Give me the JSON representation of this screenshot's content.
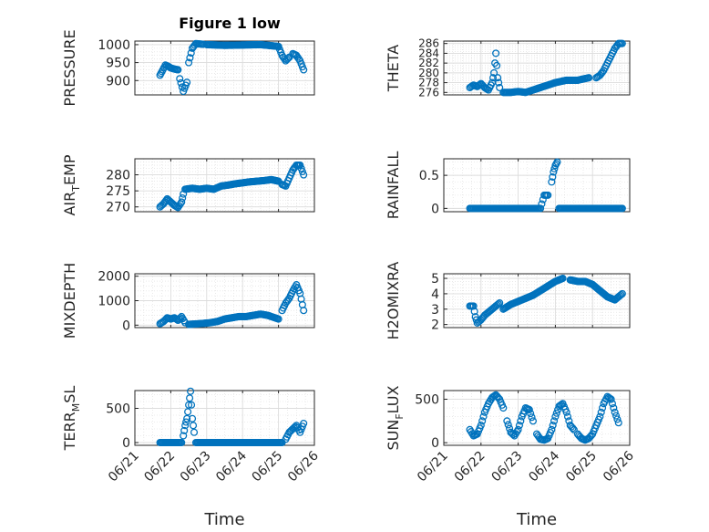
{
  "figure": {
    "title": "Figure 1 low",
    "xlabel": "Time",
    "xticks": [
      "06/21",
      "06/22",
      "06/23",
      "06/24",
      "06/25",
      "06/26"
    ],
    "marker_color": "#0072BD",
    "grid_color": "#dcdcdc"
  },
  "chart_data": [
    {
      "type": "scatter",
      "title": "Figure 1 low",
      "ylabel": "PRESSURE",
      "xlim": [
        0,
        5
      ],
      "ylim": [
        860,
        1010
      ],
      "yticks": [
        900,
        950,
        1000
      ],
      "yticklabels": [
        "900",
        "950",
        "1000"
      ],
      "grid": true,
      "segments": [
        {
          "x": [
            0.7,
            0.78,
            0.85,
            0.92,
            1.0,
            1.1,
            1.2
          ],
          "y": [
            915,
            930,
            943,
            940,
            935,
            932,
            930
          ]
        },
        {
          "x": [
            1.25,
            1.35,
            1.45
          ],
          "y": [
            905,
            870,
            895
          ]
        },
        {
          "x": [
            1.5,
            1.6,
            1.7,
            1.8,
            1.9
          ],
          "y": [
            950,
            990,
            1003,
            1002,
            1001
          ]
        },
        {
          "x": [
            2.0,
            2.5,
            3.0,
            3.5,
            4.0,
            4.1,
            4.2,
            4.3
          ],
          "y": [
            1000,
            998,
            999,
            1000,
            995,
            970,
            955,
            965
          ]
        },
        {
          "x": [
            4.4,
            4.5,
            4.6,
            4.7
          ],
          "y": [
            975,
            970,
            955,
            930
          ]
        }
      ]
    },
    {
      "type": "scatter",
      "ylabel": "THETA",
      "xlim": [
        0,
        5
      ],
      "ylim": [
        275.5,
        286.5
      ],
      "yticks": [
        276,
        278,
        280,
        282,
        284,
        286
      ],
      "yticklabels": [
        "276",
        "278",
        "280",
        "282",
        "284",
        "286"
      ],
      "grid": true,
      "segments": [
        {
          "x": [
            0.7,
            0.8,
            0.9,
            1.0,
            1.1,
            1.2,
            1.3,
            1.35,
            1.4,
            1.45,
            1.5
          ],
          "y": [
            277.0,
            277.5,
            277.2,
            277.8,
            277.0,
            276.5,
            278.0,
            280.0,
            284.0,
            279.0,
            277.0
          ]
        },
        {
          "x": [
            1.6,
            1.8,
            2.0,
            2.2,
            2.4,
            2.6,
            2.8,
            3.0,
            3.3,
            3.6,
            3.9
          ],
          "y": [
            276.0,
            276.0,
            276.2,
            276.0,
            276.5,
            277.0,
            277.5,
            278.0,
            278.5,
            278.5,
            279.0
          ]
        },
        {
          "x": [
            4.1,
            4.2,
            4.3,
            4.4,
            4.5,
            4.6,
            4.7,
            4.8
          ],
          "y": [
            279.0,
            279.5,
            280.5,
            282.0,
            283.5,
            285.0,
            286.0,
            286.0
          ]
        }
      ]
    },
    {
      "type": "scatter",
      "ylabel": "AIR_TEMP",
      "xlim": [
        0,
        5
      ],
      "ylim": [
        268.5,
        285
      ],
      "yticks": [
        270,
        275,
        280
      ],
      "yticklabels": [
        "270",
        "275",
        "280"
      ],
      "grid": true,
      "segments": [
        {
          "x": [
            0.7,
            0.8,
            0.9,
            1.0,
            1.1,
            1.2,
            1.3,
            1.35
          ],
          "y": [
            270.0,
            271.0,
            272.5,
            271.5,
            270.5,
            269.8,
            271.5,
            274.0
          ]
        },
        {
          "x": [
            1.4,
            1.6,
            1.8,
            2.0,
            2.2,
            2.4,
            2.6,
            2.8,
            3.0,
            3.2,
            3.4,
            3.6,
            3.8,
            4.0
          ],
          "y": [
            275.5,
            275.8,
            275.5,
            275.8,
            275.5,
            276.5,
            276.8,
            277.2,
            277.5,
            277.8,
            278.0,
            278.2,
            278.5,
            278.0
          ]
        },
        {
          "x": [
            4.1,
            4.2,
            4.3,
            4.4,
            4.5,
            4.6,
            4.7
          ],
          "y": [
            277.0,
            276.5,
            279.0,
            281.5,
            283.0,
            283.0,
            280.0
          ]
        }
      ]
    },
    {
      "type": "scatter",
      "ylabel": "RAINFALL",
      "xlim": [
        0,
        5
      ],
      "ylim": [
        -0.05,
        0.75
      ],
      "yticks": [
        0,
        0.5
      ],
      "yticklabels": [
        "0",
        "0.5"
      ],
      "grid": true,
      "segments": [
        {
          "x": [
            0.7,
            1.0,
            1.3,
            1.6,
            1.9,
            2.2,
            2.5,
            2.6,
            2.7,
            2.8
          ],
          "y": [
            0,
            0,
            0,
            0,
            0,
            0,
            0,
            0,
            0.2,
            0.2
          ]
        },
        {
          "x": [
            2.9,
            2.95,
            3.0,
            3.05
          ],
          "y": [
            0.4,
            0.55,
            0.65,
            0.7
          ]
        },
        {
          "x": [
            3.1,
            3.3,
            3.6,
            3.9,
            4.2,
            4.5,
            4.8
          ],
          "y": [
            0,
            0,
            0,
            0,
            0,
            0,
            0
          ]
        }
      ]
    },
    {
      "type": "scatter",
      "ylabel": "MIXDEPTH",
      "xlim": [
        0,
        5
      ],
      "ylim": [
        -100,
        2100
      ],
      "yticks": [
        0,
        1000,
        2000
      ],
      "yticklabels": [
        "0",
        "1000",
        "2000"
      ],
      "grid": true,
      "segments": [
        {
          "x": [
            0.7,
            0.8,
            0.9,
            1.0,
            1.1,
            1.2,
            1.3,
            1.4
          ],
          "y": [
            60,
            150,
            300,
            250,
            300,
            200,
            350,
            100
          ]
        },
        {
          "x": [
            1.5,
            1.7,
            1.9,
            2.1,
            2.3,
            2.5,
            2.7,
            2.9,
            3.1,
            3.3,
            3.5,
            3.7,
            3.9,
            4.0
          ],
          "y": [
            30,
            50,
            70,
            100,
            150,
            250,
            300,
            350,
            350,
            400,
            450,
            400,
            300,
            250
          ]
        },
        {
          "x": [
            4.1,
            4.2,
            4.3,
            4.4,
            4.5,
            4.6,
            4.7
          ],
          "y": [
            600,
            900,
            1100,
            1400,
            1650,
            1300,
            600
          ]
        }
      ]
    },
    {
      "type": "scatter",
      "ylabel": "H2OMIXRA",
      "xlim": [
        0,
        5
      ],
      "ylim": [
        1.8,
        5.3
      ],
      "yticks": [
        2,
        3,
        4,
        5
      ],
      "yticklabels": [
        "2",
        "3",
        "4",
        "5"
      ],
      "grid": true,
      "segments": [
        {
          "x": [
            0.7,
            0.8,
            0.85,
            0.9,
            1.0,
            1.1,
            1.2,
            1.3,
            1.4,
            1.5
          ],
          "y": [
            3.2,
            3.2,
            2.5,
            2.1,
            2.3,
            2.6,
            2.8,
            3.0,
            3.2,
            3.4
          ]
        },
        {
          "x": [
            1.6,
            1.8,
            2.0,
            2.2,
            2.4,
            2.6,
            2.8,
            3.0,
            3.2
          ],
          "y": [
            3.0,
            3.3,
            3.5,
            3.7,
            3.9,
            4.2,
            4.5,
            4.8,
            5.0
          ]
        },
        {
          "x": [
            3.4,
            3.6,
            3.8,
            4.0,
            4.2,
            4.4,
            4.6,
            4.7,
            4.8
          ],
          "y": [
            4.9,
            4.8,
            4.8,
            4.6,
            4.2,
            3.8,
            3.6,
            3.8,
            4.0
          ]
        }
      ]
    },
    {
      "type": "scatter",
      "ylabel": "TERR_MSL",
      "xlim": [
        0,
        5
      ],
      "ylim": [
        -40,
        760
      ],
      "yticks": [
        0,
        500
      ],
      "yticklabels": [
        "0",
        "500"
      ],
      "grid": true,
      "segments": [
        {
          "x": [
            0.7,
            0.85,
            1.0,
            1.15,
            1.3
          ],
          "y": [
            0,
            0,
            0,
            0,
            0
          ]
        },
        {
          "x": [
            1.35,
            1.4,
            1.45,
            1.5,
            1.55,
            1.6,
            1.65
          ],
          "y": [
            100,
            250,
            350,
            550,
            750,
            350,
            150
          ]
        },
        {
          "x": [
            1.7,
            2.0,
            2.3,
            2.6,
            2.9,
            3.2,
            3.5,
            3.8,
            4.1
          ],
          "y": [
            0,
            0,
            0,
            0,
            0,
            0,
            0,
            0,
            0
          ]
        },
        {
          "x": [
            4.2,
            4.3,
            4.4,
            4.5,
            4.6,
            4.7
          ],
          "y": [
            50,
            150,
            200,
            250,
            150,
            280
          ]
        }
      ]
    },
    {
      "type": "scatter",
      "ylabel": "SUN_FLUX",
      "xlim": [
        0,
        5
      ],
      "ylim": [
        -30,
        600
      ],
      "yticks": [
        0,
        500
      ],
      "yticklabels": [
        "0",
        "500"
      ],
      "grid": true,
      "segments": [
        {
          "x": [
            0.7,
            0.8,
            0.9,
            1.0,
            1.1,
            1.2,
            1.3,
            1.4,
            1.5,
            1.6
          ],
          "y": [
            150,
            80,
            100,
            200,
            350,
            450,
            520,
            550,
            500,
            400
          ]
        },
        {
          "x": [
            1.7,
            1.8,
            1.9,
            2.0,
            2.1,
            2.2,
            2.3,
            2.4
          ],
          "y": [
            250,
            120,
            80,
            150,
            300,
            400,
            380,
            250
          ]
        },
        {
          "x": [
            2.5,
            2.6,
            2.7,
            2.8,
            2.9,
            3.0,
            3.1,
            3.2,
            3.3,
            3.4,
            3.5
          ],
          "y": [
            100,
            40,
            30,
            50,
            150,
            300,
            420,
            450,
            350,
            200,
            150
          ]
        },
        {
          "x": [
            3.6,
            3.7,
            3.8,
            3.9,
            4.0,
            4.1,
            4.2,
            4.3,
            4.4,
            4.5,
            4.6,
            4.7
          ],
          "y": [
            100,
            50,
            30,
            50,
            100,
            200,
            300,
            450,
            530,
            500,
            350,
            230
          ]
        }
      ]
    }
  ]
}
